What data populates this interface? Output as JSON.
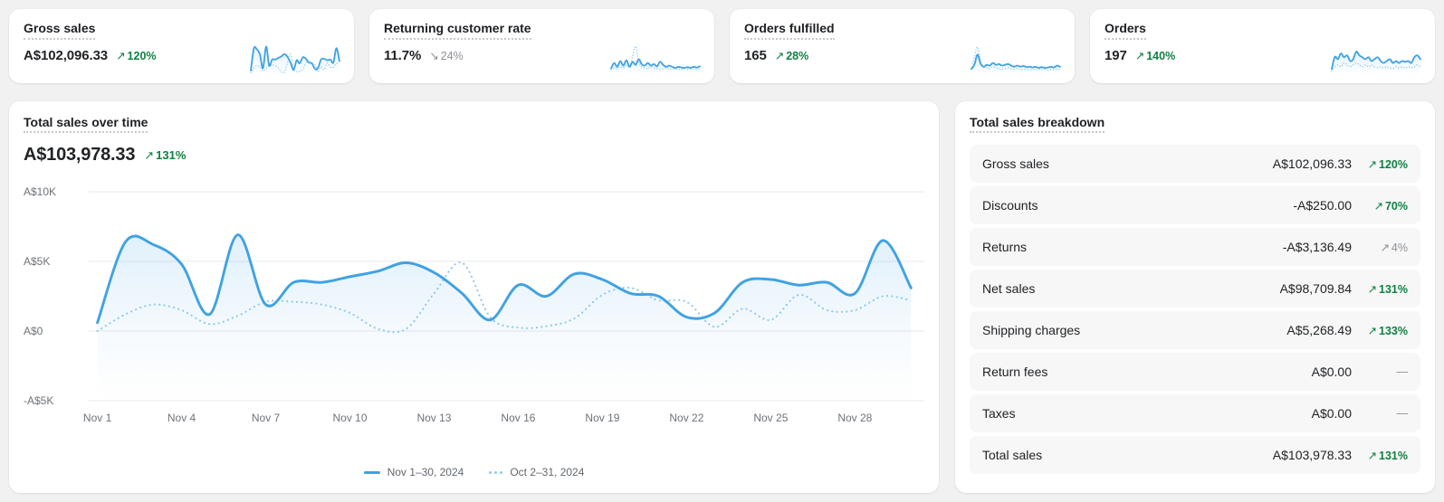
{
  "colors": {
    "accent_blue": "#40a2e3",
    "compare_blue": "#8ec9ed",
    "positive_green": "#108043",
    "neutral_gray": "#8c9196",
    "card_bg": "#ffffff",
    "page_bg": "#f1f1f1",
    "row_bg": "#f7f7f7"
  },
  "cards": [
    {
      "title": "Gross sales",
      "value": "A$102,096.33",
      "delta_arrow": "↗",
      "delta": "120%",
      "delta_tone": "green",
      "spark": {
        "current": [
          0.6,
          6.4,
          6.2,
          4.8,
          1.2,
          6.9,
          1.9,
          3.5,
          3.5,
          3.9,
          4.3,
          4.9,
          4.2,
          2.7,
          0.8,
          3.3,
          2.5,
          4.1,
          3.7,
          2.7,
          2.5,
          1.0,
          1.3,
          3.5,
          3.7,
          3.3,
          3.5,
          2.7,
          6.5,
          3.1
        ],
        "previous": [
          0,
          1.2,
          1.9,
          1.5,
          0.5,
          1.1,
          2.1,
          2.1,
          1.9,
          1.3,
          0.2,
          0.2,
          2.7,
          4.9,
          1.0,
          0.3,
          0.4,
          0.9,
          2.6,
          3.1,
          2.2,
          2.1,
          0.3,
          1.6,
          0.8,
          2.6,
          1.5,
          1.5,
          2.5,
          2.2
        ]
      }
    },
    {
      "title": "Returning customer rate",
      "value": "11.7%",
      "delta_arrow": "↘",
      "delta": "24%",
      "delta_tone": "gray",
      "spark": {
        "current": [
          1.2,
          2.6,
          1.6,
          3.1,
          1.9,
          3.3,
          1.6,
          2.9,
          2.1,
          3.6,
          2.3,
          1.9,
          2.6,
          1.9,
          2.3,
          1.7,
          2.9,
          2.1,
          1.6,
          1.9,
          1.6,
          1.3,
          1.6,
          1.4,
          1.3,
          1.5,
          1.3,
          1.6,
          1.4,
          1.7
        ],
        "previous": [
          0.9,
          1.3,
          1.1,
          1.6,
          1.3,
          2.1,
          1.6,
          4.2,
          7.0,
          3.1,
          1.6,
          1.3,
          1.1,
          1.6,
          1.3,
          1.1,
          0.9,
          1.1,
          1.3,
          0.9,
          1.1,
          0.9,
          1.0,
          0.9,
          1.1,
          0.9,
          1.0,
          1.1,
          0.9,
          1.1
        ]
      }
    },
    {
      "title": "Orders fulfilled",
      "value": "165",
      "delta_arrow": "↗",
      "delta": "28%",
      "delta_tone": "green",
      "spark": {
        "current": [
          1.0,
          2.2,
          4.8,
          2.4,
          1.6,
          2.1,
          1.9,
          2.6,
          2.1,
          2.3,
          1.9,
          2.1,
          2.3,
          1.9,
          1.6,
          1.9,
          1.6,
          1.8,
          1.5,
          1.6,
          1.4,
          1.6,
          1.3,
          1.5,
          1.3,
          1.4,
          1.6,
          1.4,
          1.9,
          1.6
        ],
        "previous": [
          0.9,
          4.2,
          6.8,
          3.1,
          1.6,
          1.3,
          1.1,
          1.6,
          1.3,
          1.1,
          0.9,
          1.1,
          1.3,
          1.1,
          0.9,
          1.1,
          0.9,
          1.0,
          0.9,
          0.8,
          0.9,
          0.8,
          0.9,
          0.8,
          0.9,
          0.8,
          0.9,
          0.8,
          1.0,
          0.9
        ]
      }
    },
    {
      "title": "Orders",
      "value": "197",
      "delta_arrow": "↗",
      "delta": "140%",
      "delta_tone": "green",
      "spark": {
        "current": [
          1.0,
          4.2,
          3.6,
          5.1,
          4.1,
          4.6,
          3.1,
          3.6,
          5.6,
          4.6,
          4.1,
          3.6,
          4.1,
          3.1,
          3.6,
          4.1,
          3.1,
          2.6,
          3.1,
          3.6,
          2.6,
          3.1,
          2.6,
          3.1,
          2.9,
          3.1,
          2.6,
          4.1,
          4.6,
          3.6
        ],
        "previous": [
          0.5,
          1.6,
          2.1,
          1.6,
          2.6,
          2.1,
          1.6,
          2.1,
          2.6,
          2.1,
          1.6,
          2.1,
          1.6,
          2.1,
          1.6,
          1.3,
          1.6,
          1.3,
          1.6,
          1.3,
          1.1,
          1.6,
          1.3,
          1.6,
          1.3,
          1.6,
          1.3,
          1.6,
          2.1,
          1.6
        ]
      }
    }
  ],
  "main_chart": {
    "title": "Total sales over time",
    "value": "A$103,978.33",
    "delta_arrow": "↗",
    "delta": "131%",
    "delta_tone": "green"
  },
  "chart_data": {
    "type": "line",
    "title": "Total sales over time",
    "x_tick_labels": [
      "Nov 1",
      "Nov 4",
      "Nov 7",
      "Nov 10",
      "Nov 13",
      "Nov 16",
      "Nov 19",
      "Nov 22",
      "Nov 25",
      "Nov 28"
    ],
    "x_tick_days": [
      1,
      4,
      7,
      10,
      13,
      16,
      19,
      22,
      25,
      28
    ],
    "y_tick_labels": [
      "A$10K",
      "A$5K",
      "A$0",
      "-A$5K"
    ],
    "y_tick_values": [
      10000,
      5000,
      0,
      -5000
    ],
    "ylim": [
      -5000,
      10000
    ],
    "grid": "horizontal",
    "legend_position": "bottom",
    "series": [
      {
        "name": "Nov 1–30, 2024",
        "style": "solid",
        "values_aud": [
          600,
          6400,
          6200,
          4800,
          1200,
          6900,
          1900,
          3500,
          3500,
          3900,
          4300,
          4900,
          4200,
          2700,
          800,
          3300,
          2500,
          4100,
          3700,
          2700,
          2500,
          1000,
          1300,
          3500,
          3700,
          3300,
          3500,
          2700,
          6500,
          3100
        ]
      },
      {
        "name": "Oct 2–31, 2024",
        "style": "dotted",
        "values_aud": [
          0,
          1200,
          1900,
          1500,
          500,
          1100,
          2100,
          2100,
          1900,
          1300,
          150,
          150,
          2700,
          4900,
          1000,
          250,
          350,
          900,
          2600,
          3100,
          2200,
          2100,
          300,
          1600,
          800,
          2600,
          1500,
          1500,
          2500,
          2200
        ]
      }
    ]
  },
  "breakdown": {
    "title": "Total sales breakdown",
    "rows": [
      {
        "label": "Gross sales",
        "value": "A$102,096.33",
        "delta_arrow": "↗",
        "delta": "120%",
        "delta_tone": "green"
      },
      {
        "label": "Discounts",
        "value": "-A$250.00",
        "delta_arrow": "↗",
        "delta": "70%",
        "delta_tone": "green"
      },
      {
        "label": "Returns",
        "value": "-A$3,136.49",
        "delta_arrow": "↗",
        "delta": "4%",
        "delta_tone": "gray"
      },
      {
        "label": "Net sales",
        "value": "A$98,709.84",
        "delta_arrow": "↗",
        "delta": "131%",
        "delta_tone": "green"
      },
      {
        "label": "Shipping charges",
        "value": "A$5,268.49",
        "delta_arrow": "↗",
        "delta": "133%",
        "delta_tone": "green"
      },
      {
        "label": "Return fees",
        "value": "A$0.00",
        "delta_arrow": "",
        "delta": "—",
        "delta_tone": "dash"
      },
      {
        "label": "Taxes",
        "value": "A$0.00",
        "delta_arrow": "",
        "delta": "—",
        "delta_tone": "dash"
      },
      {
        "label": "Total sales",
        "value": "A$103,978.33",
        "delta_arrow": "↗",
        "delta": "131%",
        "delta_tone": "green"
      }
    ]
  }
}
